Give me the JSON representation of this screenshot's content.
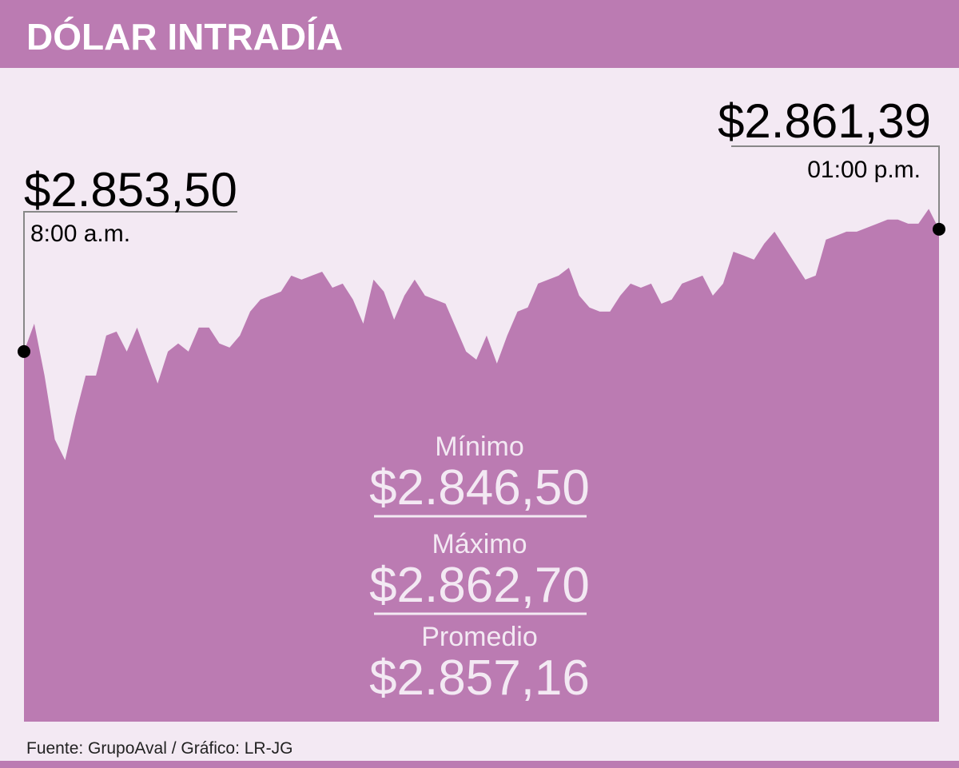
{
  "chart_data": {
    "type": "area",
    "title": "DÓLAR INTRADÍA",
    "color": "#bb7bb2",
    "ylim": [
      2829.63,
      2871.69
    ],
    "values": [
      2853.5,
      2855.3,
      2851.95,
      2847.83,
      2846.5,
      2849.38,
      2851.95,
      2851.95,
      2854.53,
      2854.79,
      2853.5,
      2855.05,
      2853.24,
      2851.44,
      2853.5,
      2854.02,
      2853.5,
      2855.05,
      2855.05,
      2854.02,
      2853.76,
      2854.53,
      2856.08,
      2856.85,
      2857.11,
      2857.37,
      2858.4,
      2858.14,
      2858.4,
      2858.65,
      2857.62,
      2857.88,
      2856.85,
      2855.3,
      2858.14,
      2857.37,
      2855.56,
      2857.11,
      2858.14,
      2857.11,
      2856.85,
      2856.59,
      2855.05,
      2853.5,
      2852.98,
      2854.53,
      2852.73,
      2854.53,
      2856.08,
      2856.34,
      2857.88,
      2858.14,
      2858.4,
      2858.91,
      2857.11,
      2856.34,
      2856.08,
      2856.08,
      2857.11,
      2857.88,
      2857.62,
      2857.88,
      2856.59,
      2856.85,
      2857.88,
      2858.14,
      2858.4,
      2857.11,
      2857.88,
      2859.94,
      2859.69,
      2859.43,
      2860.46,
      2861.23,
      2860.2,
      2859.17,
      2858.14,
      2858.4,
      2860.72,
      2860.97,
      2861.23,
      2861.23,
      2861.49,
      2861.75,
      2862.01,
      2862.01,
      2861.75,
      2861.75,
      2862.7,
      2861.39
    ],
    "annotations": [
      {
        "value": 2853.5,
        "label": "$2.853,50",
        "time": "8:00 a.m."
      },
      {
        "value": 2861.39,
        "label": "$2.861,39",
        "time": "01:00 p.m."
      }
    ],
    "stats": [
      {
        "name": "Mínimo",
        "value": 2846.5,
        "label": "$2.846,50"
      },
      {
        "name": "Máximo",
        "value": 2862.7,
        "label": "$2.862,70"
      },
      {
        "name": "Promedio",
        "value": 2857.16,
        "label": "$2.857,16"
      }
    ],
    "source": "Fuente:  GrupoAval / Gráfico: LR-JG"
  }
}
